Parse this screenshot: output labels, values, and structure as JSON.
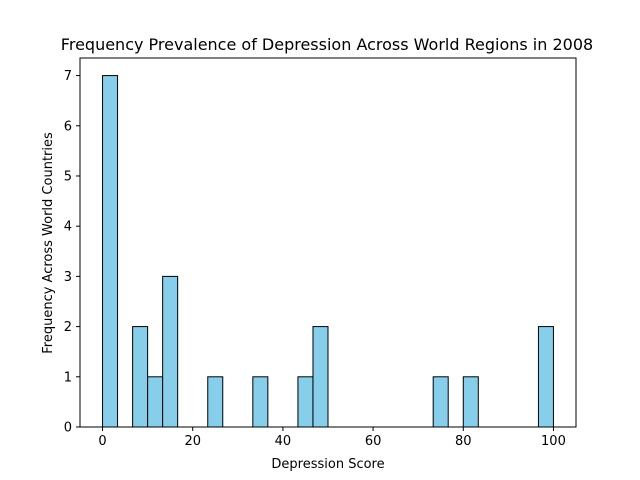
{
  "chart_data": {
    "type": "bar",
    "title": "Frequency Prevalence of Depression Across World Regions in 2008",
    "xlabel": "Depression Score",
    "ylabel": "Frequency Across World Countries",
    "xlim": [
      -5,
      105
    ],
    "ylim": [
      0,
      7.35
    ],
    "x_ticks": [
      0,
      20,
      40,
      60,
      80,
      100
    ],
    "y_ticks": [
      0,
      1,
      2,
      3,
      4,
      5,
      6,
      7
    ],
    "bin_width": 3.33,
    "bins": [
      {
        "start": 0.0,
        "count": 7
      },
      {
        "start": 6.67,
        "count": 2
      },
      {
        "start": 10.0,
        "count": 1
      },
      {
        "start": 13.33,
        "count": 3
      },
      {
        "start": 23.33,
        "count": 1
      },
      {
        "start": 33.33,
        "count": 1
      },
      {
        "start": 43.33,
        "count": 1
      },
      {
        "start": 46.67,
        "count": 2
      },
      {
        "start": 73.33,
        "count": 1
      },
      {
        "start": 80.0,
        "count": 1
      },
      {
        "start": 96.67,
        "count": 2
      }
    ],
    "bar_color": "#87ceeb",
    "edge_color": "#000000",
    "grid": false
  }
}
